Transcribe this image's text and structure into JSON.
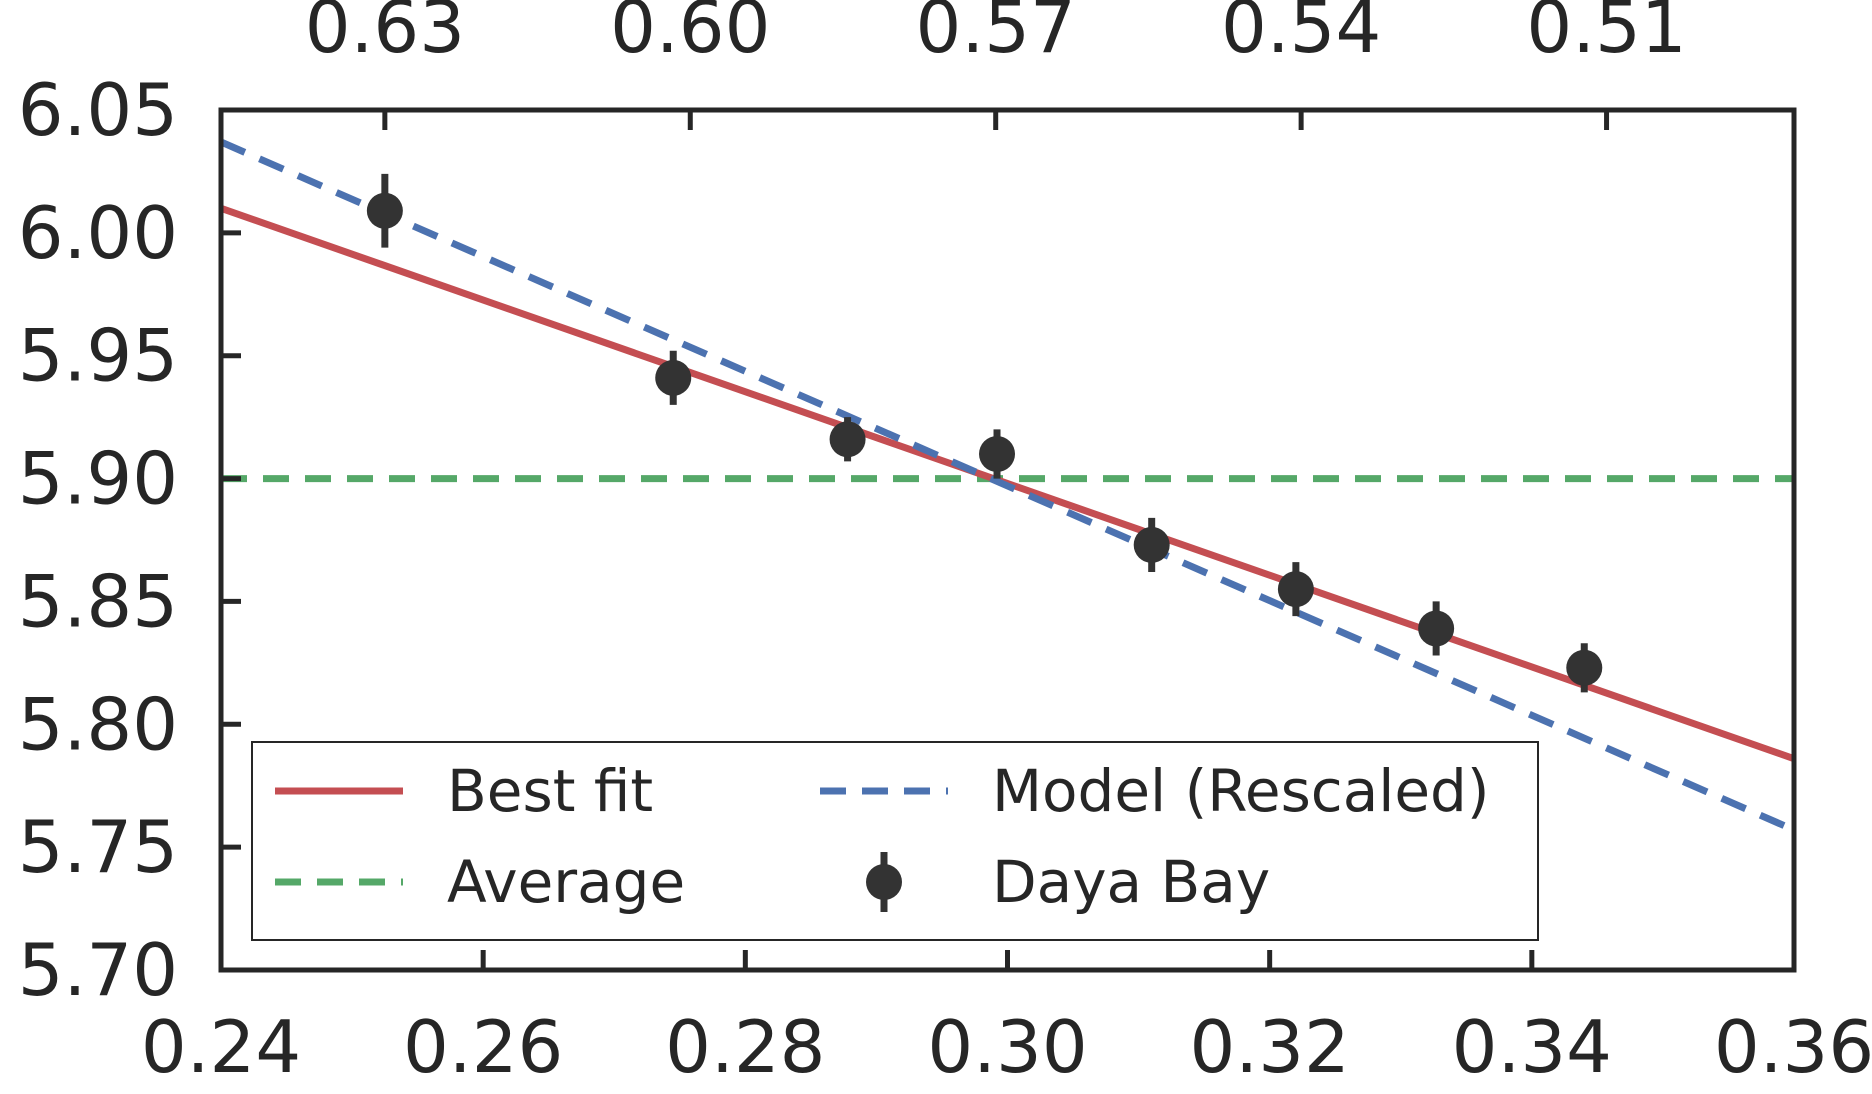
{
  "chart_data": {
    "type": "line",
    "title": "",
    "xlabel": "",
    "ylabel": "",
    "xlim": [
      0.24,
      0.36
    ],
    "ylim": [
      5.7,
      6.05
    ],
    "x_ticks": [
      0.24,
      0.26,
      0.28,
      0.3,
      0.32,
      0.34,
      0.36
    ],
    "x_tick_labels": [
      "0.24",
      "0.26",
      "0.28",
      "0.30",
      "0.32",
      "0.34",
      "0.36"
    ],
    "y_ticks": [
      5.7,
      5.75,
      5.8,
      5.85,
      5.9,
      5.95,
      6.0,
      6.05
    ],
    "y_tick_labels": [
      "5.70",
      "5.75",
      "5.80",
      "5.85",
      "5.90",
      "5.95",
      "6.00",
      "6.05"
    ],
    "top_axis": {
      "tick_positions": [
        0.2525,
        0.2758,
        0.2991,
        0.3224,
        0.3457,
        0.369
      ],
      "tick_labels": [
        "0.63",
        "0.60",
        "0.57",
        "0.54",
        "0.51"
      ]
    },
    "grid": false,
    "legend": {
      "position": "lower-left",
      "columns": 2,
      "entries": [
        {
          "label": "Best fit",
          "series": "best_fit"
        },
        {
          "label": "Model (Rescaled)",
          "series": "model"
        },
        {
          "label": "Average",
          "series": "average"
        },
        {
          "label": "Daya Bay",
          "series": "data"
        }
      ]
    },
    "series": [
      {
        "key": "best_fit",
        "name": "Best fit",
        "style": "solid",
        "color": "#c44e52",
        "x": [
          0.24,
          0.36
        ],
        "y": [
          6.01,
          5.786
        ]
      },
      {
        "key": "model",
        "name": "Model (Rescaled)",
        "style": "dashed",
        "color": "#4c72b0",
        "x": [
          0.24,
          0.36
        ],
        "y": [
          6.037,
          5.757
        ]
      },
      {
        "key": "average",
        "name": "Average",
        "style": "dashed",
        "color": "#55a868",
        "x": [
          0.24,
          0.36
        ],
        "y": [
          5.9,
          5.9
        ]
      },
      {
        "key": "data",
        "name": "Daya Bay",
        "style": "errorbar",
        "color": "#333333",
        "x": [
          0.2525,
          0.2745,
          0.2878,
          0.2992,
          0.311,
          0.322,
          0.3327,
          0.344
        ],
        "y": [
          6.009,
          5.941,
          5.916,
          5.91,
          5.873,
          5.855,
          5.839,
          5.823
        ],
        "yerr": [
          0.015,
          0.011,
          0.009,
          0.01,
          0.011,
          0.011,
          0.011,
          0.01
        ]
      }
    ]
  }
}
